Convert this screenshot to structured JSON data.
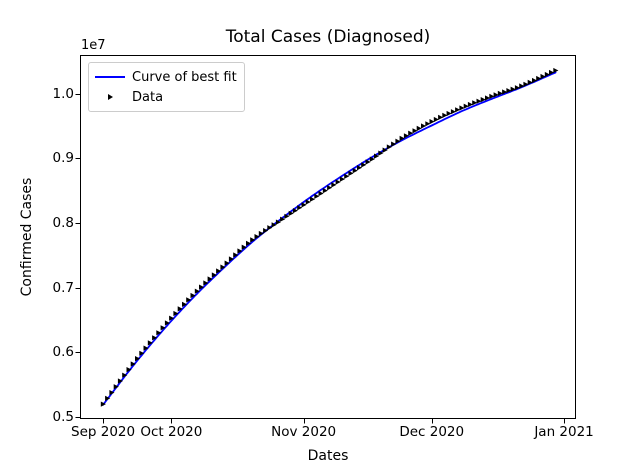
{
  "chart_data": {
    "type": "line",
    "title": "Total Cases (Diagnosed)",
    "xlabel": "Dates",
    "ylabel": "Confirmed Cases",
    "y_offset_label": "1e7",
    "value_units": "confirmed cases, in units of 1e7",
    "grid": false,
    "x_axis": {
      "tick_labels": [
        "Sep 2020",
        "Oct 2020",
        "Nov 2020",
        "Dec 2020",
        "Jan 2021"
      ],
      "tick_day_offsets": [
        0,
        16,
        47,
        77,
        108
      ],
      "range_day_offsets": [
        -5.4,
        110.8
      ]
    },
    "y_axis": {
      "tick_labels": [
        "0.5",
        "0.6",
        "0.7",
        "0.8",
        "0.9",
        "1.0"
      ],
      "tick_values": [
        0.5,
        0.6,
        0.7,
        0.8,
        0.9,
        1.0
      ],
      "range": [
        0.497,
        1.06
      ]
    },
    "legend": {
      "position": "upper-left",
      "entries": [
        {
          "label": "Curve of best fit",
          "type": "line",
          "color": "#0000ff"
        },
        {
          "label": "Data",
          "type": "marker-triangle-right",
          "color": "#000000"
        }
      ]
    },
    "series": [
      {
        "name": "Curve of best fit",
        "type": "line",
        "color": "#0000ff",
        "line_width": 1.8,
        "points_day_value": [
          [
            0,
            0.519
          ],
          [
            7,
            0.579
          ],
          [
            14,
            0.634
          ],
          [
            21,
            0.684
          ],
          [
            28,
            0.729
          ],
          [
            35,
            0.771
          ],
          [
            42,
            0.808
          ],
          [
            49,
            0.842
          ],
          [
            56,
            0.873
          ],
          [
            63,
            0.902
          ],
          [
            70,
            0.928
          ],
          [
            77,
            0.951
          ],
          [
            84,
            0.973
          ],
          [
            91,
            0.992
          ],
          [
            98,
            1.01
          ],
          [
            106,
            1.033
          ]
        ]
      },
      {
        "name": "Data",
        "type": "scatter",
        "marker": "triangle-right",
        "color": "#000000",
        "sample_interval_days": 1,
        "points_day_value": [
          [
            0,
            0.52
          ],
          [
            7,
            0.582
          ],
          [
            14,
            0.638
          ],
          [
            21,
            0.688
          ],
          [
            28,
            0.732
          ],
          [
            35,
            0.774
          ],
          [
            42,
            0.806
          ],
          [
            49,
            0.837
          ],
          [
            56,
            0.868
          ],
          [
            63,
            0.899
          ],
          [
            70,
            0.931
          ],
          [
            77,
            0.957
          ],
          [
            84,
            0.978
          ],
          [
            91,
            0.996
          ],
          [
            98,
            1.012
          ],
          [
            106,
            1.036
          ]
        ]
      }
    ]
  }
}
